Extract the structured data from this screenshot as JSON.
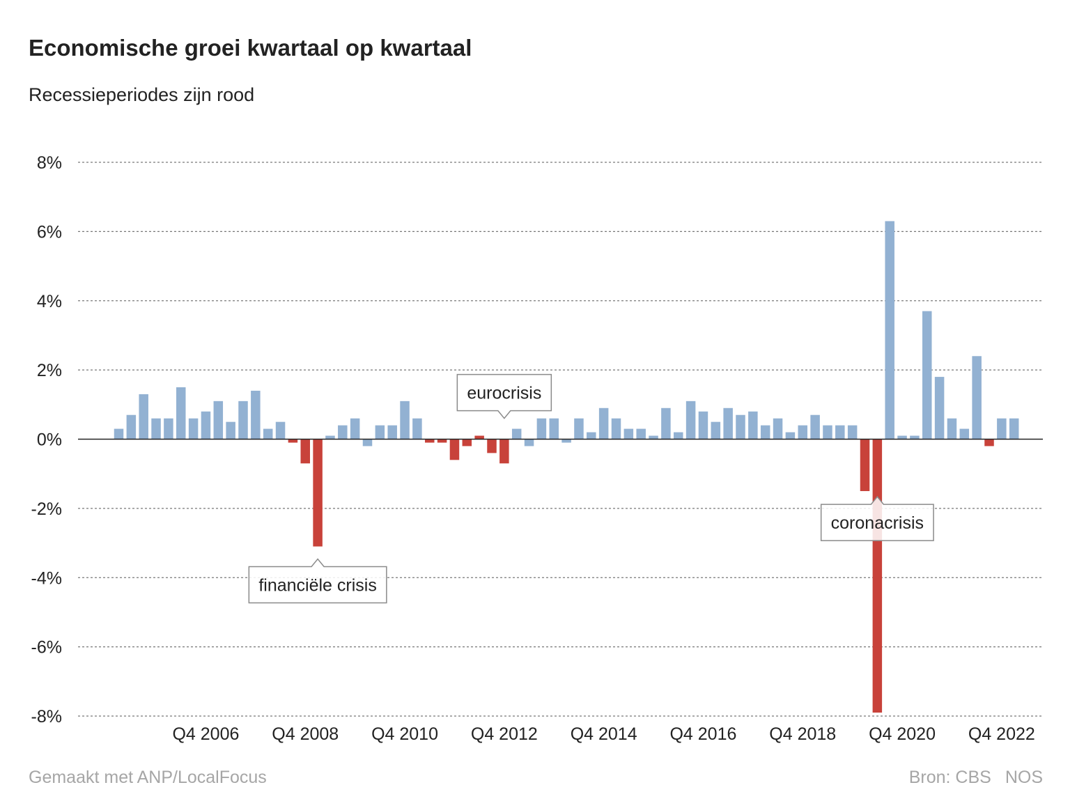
{
  "title": "Economische groei kwartaal op kwartaal",
  "subtitle": "Recessieperiodes zijn rood",
  "footer": {
    "made_with": "Gemaakt met ANP/LocalFocus",
    "source": "Bron: CBS",
    "brand": "NOS"
  },
  "colors": {
    "growth": "#92b1d2",
    "recession": "#c8423a",
    "grid": "#777777",
    "axis_text": "#222222",
    "footer_text": "#a6a6a6"
  },
  "chart_data": {
    "type": "bar",
    "title": "Economische groei kwartaal op kwartaal",
    "subtitle": "Recessieperiodes zijn rood",
    "xlabel": "",
    "ylabel": "",
    "ylim": [
      -8,
      8
    ],
    "yticks": [
      8,
      6,
      4,
      2,
      0,
      -2,
      -4,
      -6,
      -8
    ],
    "ytick_labels": [
      "8%",
      "6%",
      "4%",
      "2%",
      "0%",
      "-2%",
      "-4%",
      "-6%",
      "-8%"
    ],
    "grid": true,
    "categories": [
      "Q1 2005",
      "Q2 2005",
      "Q3 2005",
      "Q4 2005",
      "Q1 2006",
      "Q2 2006",
      "Q3 2006",
      "Q4 2006",
      "Q1 2007",
      "Q2 2007",
      "Q3 2007",
      "Q4 2007",
      "Q1 2008",
      "Q2 2008",
      "Q3 2008",
      "Q4 2008",
      "Q1 2009",
      "Q2 2009",
      "Q3 2009",
      "Q4 2009",
      "Q1 2010",
      "Q2 2010",
      "Q3 2010",
      "Q4 2010",
      "Q1 2011",
      "Q2 2011",
      "Q3 2011",
      "Q4 2011",
      "Q1 2012",
      "Q2 2012",
      "Q3 2012",
      "Q4 2012",
      "Q1 2013",
      "Q2 2013",
      "Q3 2013",
      "Q4 2013",
      "Q1 2014",
      "Q2 2014",
      "Q3 2014",
      "Q4 2014",
      "Q1 2015",
      "Q2 2015",
      "Q3 2015",
      "Q4 2015",
      "Q1 2016",
      "Q2 2016",
      "Q3 2016",
      "Q4 2016",
      "Q1 2017",
      "Q2 2017",
      "Q3 2017",
      "Q4 2017",
      "Q1 2018",
      "Q2 2018",
      "Q3 2018",
      "Q4 2018",
      "Q1 2019",
      "Q2 2019",
      "Q3 2019",
      "Q4 2019",
      "Q1 2020",
      "Q2 2020",
      "Q3 2020",
      "Q4 2020",
      "Q1 2021",
      "Q2 2021",
      "Q3 2021",
      "Q4 2021",
      "Q1 2022",
      "Q2 2022",
      "Q3 2022",
      "Q4 2022",
      "Q1 2023"
    ],
    "values": [
      0.3,
      0.7,
      1.3,
      0.6,
      0.6,
      1.5,
      0.6,
      0.8,
      1.1,
      0.5,
      1.1,
      1.4,
      0.3,
      0.5,
      -0.1,
      -0.7,
      -3.1,
      0.1,
      0.4,
      0.6,
      -0.2,
      0.4,
      0.4,
      1.1,
      0.6,
      -0.1,
      -0.1,
      -0.6,
      -0.2,
      0.1,
      -0.4,
      -0.7,
      0.3,
      -0.2,
      0.6,
      0.6,
      -0.1,
      0.6,
      0.2,
      0.9,
      0.6,
      0.3,
      0.3,
      0.1,
      0.9,
      0.2,
      1.1,
      0.8,
      0.5,
      0.9,
      0.7,
      0.8,
      0.4,
      0.6,
      0.2,
      0.4,
      0.7,
      0.4,
      0.4,
      0.4,
      -1.5,
      -7.9,
      6.3,
      0.1,
      0.1,
      3.7,
      1.8,
      0.6,
      0.3,
      2.4,
      -0.2,
      0.6,
      0.6
    ],
    "recession": [
      false,
      false,
      false,
      false,
      false,
      false,
      false,
      false,
      false,
      false,
      false,
      false,
      false,
      false,
      true,
      true,
      true,
      false,
      false,
      false,
      false,
      false,
      false,
      false,
      false,
      true,
      true,
      true,
      true,
      true,
      true,
      true,
      false,
      false,
      false,
      false,
      false,
      false,
      false,
      false,
      false,
      false,
      false,
      false,
      false,
      false,
      false,
      false,
      false,
      false,
      false,
      false,
      false,
      false,
      false,
      false,
      false,
      false,
      false,
      false,
      true,
      true,
      false,
      false,
      false,
      false,
      false,
      false,
      false,
      false,
      true,
      false,
      false
    ],
    "xtick_labels": [
      {
        "category": "Q4 2006",
        "label": "Q4 2006"
      },
      {
        "category": "Q4 2008",
        "label": "Q4 2008"
      },
      {
        "category": "Q4 2010",
        "label": "Q4 2010"
      },
      {
        "category": "Q4 2012",
        "label": "Q4 2012"
      },
      {
        "category": "Q4 2014",
        "label": "Q4 2014"
      },
      {
        "category": "Q4 2016",
        "label": "Q4 2016"
      },
      {
        "category": "Q4 2018",
        "label": "Q4 2018"
      },
      {
        "category": "Q4 2020",
        "label": "Q4 2020"
      },
      {
        "category": "Q4 2022",
        "label": "Q4 2022"
      }
    ],
    "annotations": [
      {
        "text": "financiële crisis",
        "category": "Q1 2009",
        "value": -3.1,
        "pointer": "up"
      },
      {
        "text": "eurocrisis",
        "category": "Q4 2012",
        "value": 0.3,
        "pointer": "down"
      },
      {
        "text": "coronacrisis",
        "category": "Q2 2020",
        "value": -1.3,
        "pointer": "up"
      }
    ]
  }
}
